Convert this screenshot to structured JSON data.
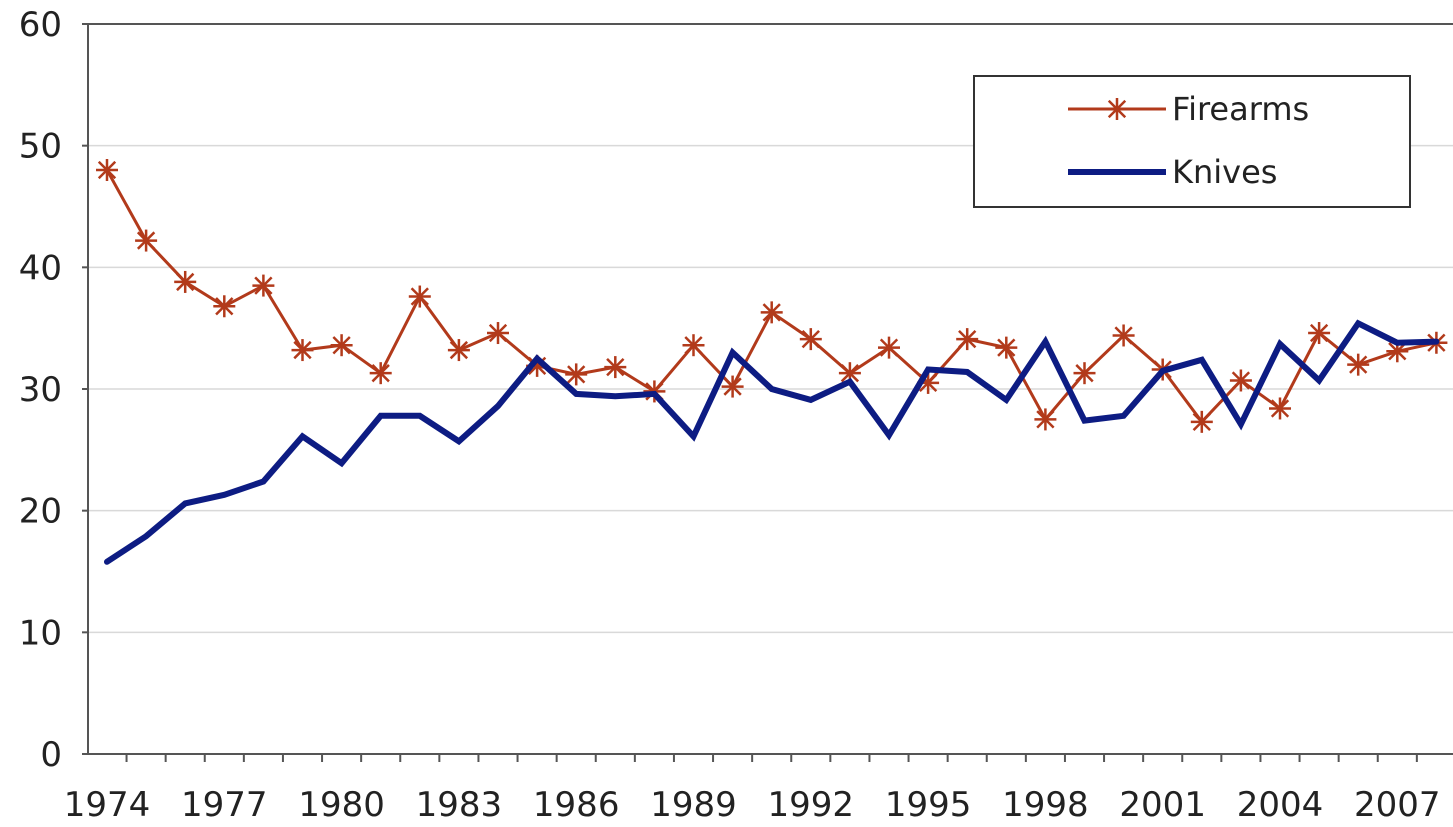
{
  "chart_data": {
    "type": "line",
    "x": [
      1974,
      1975,
      1976,
      1977,
      1978,
      1979,
      1980,
      1981,
      1982,
      1983,
      1984,
      1985,
      1986,
      1987,
      1988,
      1989,
      1990,
      1991,
      1992,
      1993,
      1994,
      1995,
      1996,
      1997,
      1998,
      1999,
      2000,
      2001,
      2002,
      2003,
      2004,
      2005,
      2006,
      2007,
      2008
    ],
    "x_tick_labels": [
      "1974",
      "1977",
      "1980",
      "1983",
      "1986",
      "1989",
      "1992",
      "1995",
      "1998",
      "2001",
      "2004",
      "2007"
    ],
    "y_tick_labels": [
      "0",
      "10",
      "20",
      "30",
      "40",
      "50",
      "60"
    ],
    "ylim": [
      0,
      60
    ],
    "grid": "horizontal",
    "legend_position": "top-right",
    "series": [
      {
        "name": "Firearms",
        "color": "#b23a1b",
        "marker": "asterisk",
        "values": [
          48,
          42.2,
          38.8,
          36.8,
          38.5,
          33.2,
          33.6,
          31.3,
          37.6,
          33.2,
          34.6,
          31.9,
          31.2,
          31.8,
          29.8,
          33.6,
          30.2,
          36.3,
          34.1,
          31.3,
          33.4,
          30.5,
          34.1,
          33.4,
          27.5,
          31.3,
          34.4,
          31.6,
          27.3,
          30.7,
          28.4,
          34.6,
          32.0,
          33.1,
          33.8
        ]
      },
      {
        "name": "Knives",
        "color": "#0d1c83",
        "marker": "none",
        "values": [
          15.8,
          17.9,
          20.6,
          21.3,
          22.4,
          26.1,
          23.9,
          27.8,
          27.8,
          25.7,
          28.6,
          32.5,
          29.6,
          29.4,
          29.6,
          26.1,
          33.0,
          30.0,
          29.1,
          30.6,
          26.2,
          31.6,
          31.4,
          29.1,
          33.9,
          27.4,
          27.8,
          31.5,
          32.4,
          27.1,
          33.7,
          30.7,
          35.4,
          33.8,
          33.9
        ]
      }
    ]
  }
}
